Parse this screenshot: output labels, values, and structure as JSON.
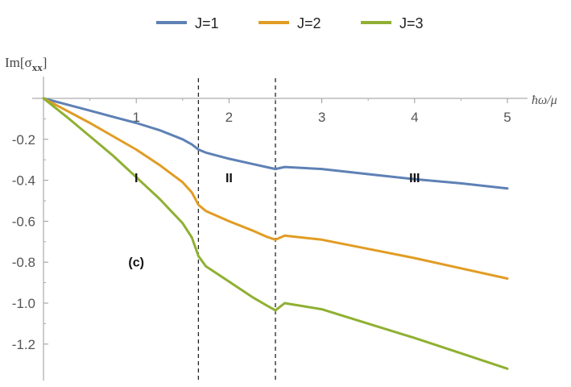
{
  "chart_data": {
    "type": "line",
    "title": "",
    "ylabel": "Im[σ",
    "ylabel_sub": "xx",
    "ylabel_close": "]",
    "xlabel": "ħω/μ",
    "xlim": [
      0,
      5
    ],
    "ylim": [
      -1.35,
      0.05
    ],
    "x_ticks": [
      1,
      2,
      3,
      4,
      5
    ],
    "y_ticks": [
      -0.2,
      -0.4,
      -0.6,
      -0.8,
      -1.0,
      -1.2
    ],
    "x_tick_labels": [
      "1",
      "2",
      "3",
      "4",
      "5"
    ],
    "y_tick_labels": [
      "-0.2",
      "-0.4",
      "-0.6",
      "-0.8",
      "-1.0",
      "-1.2"
    ],
    "grid": false,
    "legend_position": "top",
    "vlines": [
      1.67,
      2.5
    ],
    "annotations": [
      {
        "text": "I",
        "x": 1.0,
        "y": -0.41
      },
      {
        "text": "II",
        "x": 2.0,
        "y": -0.41
      },
      {
        "text": "III",
        "x": 4.0,
        "y": -0.41
      },
      {
        "text": "(c)",
        "x": 1.0,
        "y": -0.82
      }
    ],
    "series": [
      {
        "name": "J=1",
        "color": "#5e81b5",
        "x": [
          0,
          0.25,
          0.5,
          0.75,
          1.0,
          1.25,
          1.5,
          1.6,
          1.67,
          1.75,
          2.0,
          2.25,
          2.4,
          2.5,
          2.6,
          3.0,
          3.5,
          4.0,
          4.5,
          5.0
        ],
        "y": [
          0,
          -0.03,
          -0.06,
          -0.09,
          -0.12,
          -0.155,
          -0.2,
          -0.225,
          -0.25,
          -0.265,
          -0.295,
          -0.32,
          -0.335,
          -0.345,
          -0.335,
          -0.345,
          -0.37,
          -0.395,
          -0.415,
          -0.44
        ]
      },
      {
        "name": "J=2",
        "color": "#e19c24",
        "x": [
          0,
          0.25,
          0.5,
          0.75,
          1.0,
          1.25,
          1.5,
          1.6,
          1.67,
          1.75,
          2.0,
          2.25,
          2.4,
          2.5,
          2.6,
          3.0,
          3.5,
          4.0,
          4.5,
          5.0
        ],
        "y": [
          0,
          -0.06,
          -0.12,
          -0.185,
          -0.25,
          -0.325,
          -0.41,
          -0.46,
          -0.52,
          -0.55,
          -0.6,
          -0.645,
          -0.675,
          -0.69,
          -0.67,
          -0.69,
          -0.735,
          -0.78,
          -0.83,
          -0.88
        ]
      },
      {
        "name": "J=3",
        "color": "#8fb032",
        "x": [
          0,
          0.25,
          0.5,
          0.75,
          1.0,
          1.25,
          1.5,
          1.6,
          1.67,
          1.75,
          2.0,
          2.25,
          2.4,
          2.5,
          2.6,
          3.0,
          3.5,
          4.0,
          4.5,
          5.0
        ],
        "y": [
          0,
          -0.09,
          -0.185,
          -0.28,
          -0.385,
          -0.49,
          -0.61,
          -0.68,
          -0.77,
          -0.82,
          -0.895,
          -0.97,
          -1.01,
          -1.035,
          -1.0,
          -1.03,
          -1.1,
          -1.17,
          -1.245,
          -1.32
        ]
      }
    ]
  }
}
